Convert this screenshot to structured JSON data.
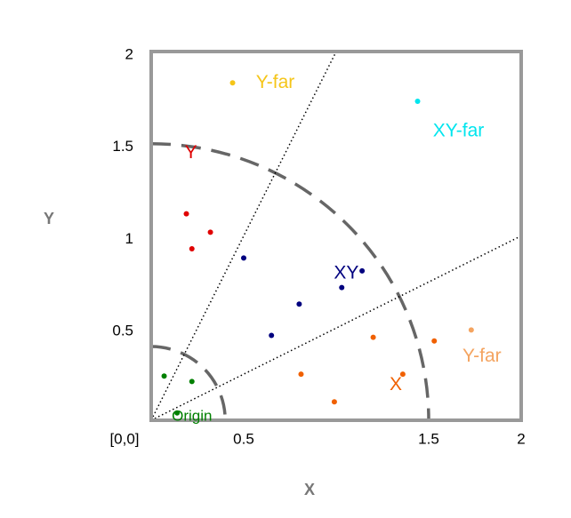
{
  "chart_data": {
    "type": "scatter",
    "x_label": "X",
    "y_label": "Y",
    "xlim": [
      0,
      2
    ],
    "ylim": [
      0,
      2
    ],
    "xticks": [
      {
        "value": 0,
        "label": "[0,0]"
      },
      0.5,
      1.5,
      2
    ],
    "yticks": [
      0.5,
      1,
      1.5,
      2
    ],
    "region_radii": [
      0.4,
      1.5
    ],
    "boundary_slopes": [
      2,
      0.5
    ],
    "series": [
      {
        "name": "Y-far",
        "color": "#f5c518",
        "x": [
          0.44
        ],
        "values": [
          1.83
        ]
      },
      {
        "name": "XY-far",
        "color": "#00e5ee",
        "x": [
          1.44
        ],
        "values": [
          1.73
        ]
      },
      {
        "name": "Y",
        "color": "#e00000",
        "x": [
          0.19,
          0.32,
          0.22
        ],
        "values": [
          1.12,
          1.02,
          0.93
        ]
      },
      {
        "name": "XY",
        "color": "#00007f",
        "x": [
          0.5,
          1.14,
          1.03,
          0.8,
          0.65
        ],
        "values": [
          0.88,
          0.81,
          0.72,
          0.63,
          0.46
        ]
      },
      {
        "name": "X",
        "color": "#f06000",
        "x": [
          1.2,
          1.53,
          0.81,
          1.36,
          0.99
        ],
        "values": [
          0.45,
          0.43,
          0.25,
          0.25,
          0.1
        ]
      },
      {
        "name": "Y-far",
        "color": "#f4a460",
        "x": [
          1.73
        ],
        "values": [
          0.49
        ]
      },
      {
        "name": "Origin",
        "color": "#008000",
        "x": [
          0.07,
          0.22,
          0.14
        ],
        "values": [
          0.24,
          0.21,
          0.04
        ]
      }
    ]
  }
}
